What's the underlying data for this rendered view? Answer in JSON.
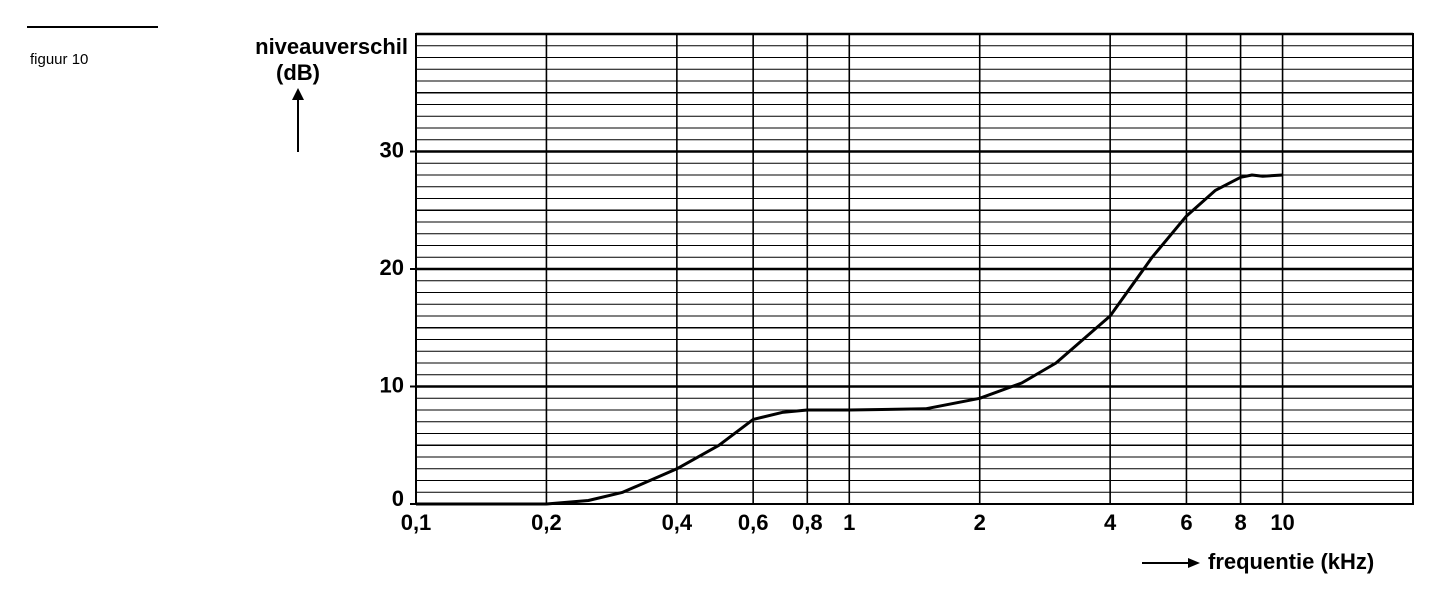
{
  "chart_data": {
    "type": "line",
    "figure_label": "figuur 10",
    "y_label": [
      "niveauverschil",
      "(dB)"
    ],
    "x_label": "frequentie (kHz)",
    "x_scale": "log",
    "grid": true,
    "color": "#000000",
    "xlim": [
      0.1,
      20
    ],
    "ylim": [
      0,
      40
    ],
    "xticks": [
      {
        "value": 0.1,
        "label": "0,1"
      },
      {
        "value": 0.2,
        "label": "0,2"
      },
      {
        "value": 0.4,
        "label": "0,4"
      },
      {
        "value": 0.6,
        "label": "0,6"
      },
      {
        "value": 0.8,
        "label": "0,8"
      },
      1,
      2,
      4,
      6,
      8,
      10
    ],
    "yticks": [
      0,
      10,
      20,
      30
    ],
    "y_gridlines": [
      1,
      2,
      3,
      4,
      5,
      6,
      7,
      8,
      9,
      10,
      11,
      12,
      13,
      14,
      15,
      16,
      17,
      18,
      19,
      20,
      21,
      22,
      23,
      24,
      25,
      26,
      27,
      28,
      29,
      30,
      31,
      32,
      33,
      34,
      35,
      36,
      37,
      38,
      39,
      40
    ],
    "x": [
      0.1,
      0.2,
      0.25,
      0.3,
      0.4,
      0.5,
      0.6,
      0.7,
      0.8,
      1,
      1.5,
      2,
      2.5,
      3,
      4,
      5,
      6,
      7,
      8,
      8.5,
      9,
      10
    ],
    "values": [
      0,
      0,
      0.3,
      1,
      3,
      5,
      7.2,
      7.8,
      8,
      8,
      8.1,
      9,
      10.3,
      12,
      16,
      21,
      24.5,
      26.7,
      27.8,
      28,
      27.9,
      28
    ]
  }
}
